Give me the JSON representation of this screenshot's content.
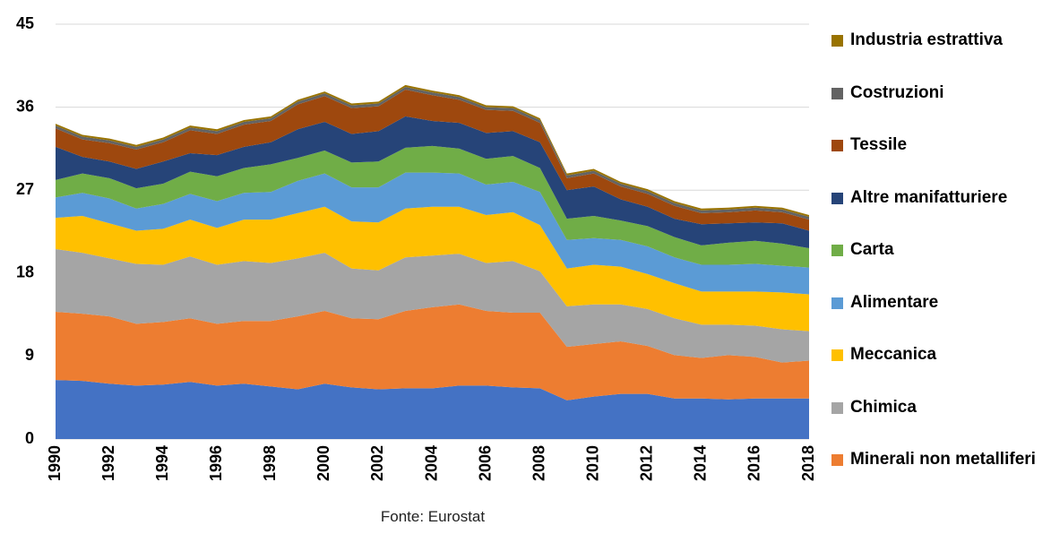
{
  "chart_data": {
    "type": "stacked_area",
    "source": "Fonte: Eurostat",
    "x": [
      1990,
      1991,
      1992,
      1993,
      1994,
      1995,
      1996,
      1997,
      1998,
      1999,
      2000,
      2001,
      2002,
      2003,
      2004,
      2005,
      2006,
      2007,
      2008,
      2009,
      2010,
      2011,
      2012,
      2013,
      2014,
      2015,
      2016,
      2017,
      2018
    ],
    "xlim": [
      1990,
      2018
    ],
    "xticks": [
      1990,
      1992,
      1994,
      1996,
      1998,
      2000,
      2002,
      2004,
      2006,
      2008,
      2010,
      2012,
      2014,
      2016,
      2018
    ],
    "ylim": [
      0,
      45
    ],
    "yticks": [
      0,
      9,
      18,
      27,
      36,
      45
    ],
    "grid": true,
    "legend": "right",
    "series": [
      {
        "color": "#4472c4",
        "values": [
          6.4,
          6.3,
          6.0,
          5.8,
          5.9,
          6.2,
          5.8,
          6.0,
          5.7,
          5.4,
          6.0,
          5.6,
          5.4,
          5.5,
          5.5,
          5.8,
          5.8,
          5.6,
          5.5,
          4.2,
          4.6,
          4.9,
          4.9,
          4.4,
          4.4,
          4.3,
          4.4,
          4.4,
          4.4
        ]
      },
      {
        "name": "Minerali non metalliferi",
        "color": "#ed7d31",
        "values": [
          7.4,
          7.3,
          7.3,
          6.7,
          6.8,
          6.9,
          6.7,
          6.8,
          7.1,
          7.9,
          7.9,
          7.5,
          7.6,
          8.4,
          8.8,
          8.8,
          8.1,
          8.1,
          8.2,
          5.8,
          5.7,
          5.7,
          5.2,
          4.7,
          4.4,
          4.8,
          4.5,
          3.9,
          4.1
        ]
      },
      {
        "name": "Chimica",
        "color": "#a5a5a5",
        "values": [
          6.8,
          6.6,
          6.3,
          6.5,
          6.2,
          6.7,
          6.4,
          6.5,
          6.3,
          6.3,
          6.3,
          5.4,
          5.3,
          5.8,
          5.6,
          5.5,
          5.2,
          5.6,
          4.5,
          4.4,
          4.3,
          4.0,
          4.0,
          4.0,
          3.6,
          3.3,
          3.4,
          3.6,
          3.2
        ]
      },
      {
        "name": "Meccanica",
        "color": "#ffc000",
        "values": [
          3.4,
          4.0,
          3.8,
          3.6,
          3.9,
          4.0,
          4.0,
          4.5,
          4.7,
          4.9,
          5.0,
          5.1,
          5.2,
          5.3,
          5.3,
          5.1,
          5.2,
          5.3,
          5.0,
          4.1,
          4.3,
          4.1,
          3.8,
          3.8,
          3.6,
          3.6,
          3.7,
          4.0,
          4.0
        ]
      },
      {
        "name": "Alimentare",
        "color": "#5b9bd5",
        "values": [
          2.2,
          2.5,
          2.7,
          2.4,
          2.7,
          2.8,
          2.9,
          2.9,
          3.0,
          3.5,
          3.6,
          3.7,
          3.8,
          3.9,
          3.7,
          3.6,
          3.3,
          3.3,
          3.6,
          3.1,
          2.9,
          2.9,
          3.0,
          2.8,
          2.9,
          2.9,
          3.0,
          2.9,
          2.9
        ]
      },
      {
        "name": "Carta",
        "color": "#70ad47",
        "values": [
          1.9,
          2.1,
          2.2,
          2.2,
          2.2,
          2.4,
          2.7,
          2.7,
          3.0,
          2.5,
          2.5,
          2.7,
          2.8,
          2.7,
          2.9,
          2.7,
          2.8,
          2.8,
          2.6,
          2.3,
          2.4,
          2.1,
          2.2,
          2.2,
          2.1,
          2.4,
          2.5,
          2.4,
          2.1
        ]
      },
      {
        "name": "Altre manifatturiere",
        "color": "#264478",
        "values": [
          3.6,
          1.8,
          1.8,
          2.1,
          2.4,
          2.0,
          2.3,
          2.3,
          2.4,
          3.1,
          3.1,
          3.1,
          3.3,
          3.4,
          2.7,
          2.8,
          2.8,
          2.7,
          2.8,
          3.1,
          3.2,
          2.3,
          2.1,
          2.0,
          2.3,
          2.1,
          2.0,
          2.2,
          1.9
        ]
      },
      {
        "name": "Tessile",
        "color": "#9e480e",
        "values": [
          2.0,
          1.9,
          2.0,
          2.1,
          2.1,
          2.5,
          2.3,
          2.4,
          2.3,
          2.7,
          2.8,
          2.8,
          2.7,
          2.9,
          2.8,
          2.5,
          2.5,
          2.2,
          2.1,
          1.3,
          1.4,
          1.4,
          1.4,
          1.4,
          1.2,
          1.2,
          1.3,
          1.2,
          1.2
        ]
      },
      {
        "name": "Costruzioni",
        "color": "#636363",
        "values": [
          0.3,
          0.3,
          0.3,
          0.3,
          0.3,
          0.3,
          0.3,
          0.3,
          0.3,
          0.3,
          0.3,
          0.3,
          0.3,
          0.3,
          0.3,
          0.3,
          0.3,
          0.3,
          0.3,
          0.3,
          0.3,
          0.3,
          0.3,
          0.3,
          0.3,
          0.3,
          0.3,
          0.3,
          0.3
        ]
      },
      {
        "name": "Industria estrattiva",
        "color": "#997300",
        "values": [
          0.2,
          0.2,
          0.2,
          0.2,
          0.2,
          0.2,
          0.2,
          0.2,
          0.2,
          0.2,
          0.2,
          0.2,
          0.2,
          0.2,
          0.2,
          0.2,
          0.2,
          0.2,
          0.2,
          0.2,
          0.2,
          0.2,
          0.2,
          0.2,
          0.2,
          0.2,
          0.2,
          0.2,
          0.2
        ]
      }
    ]
  }
}
